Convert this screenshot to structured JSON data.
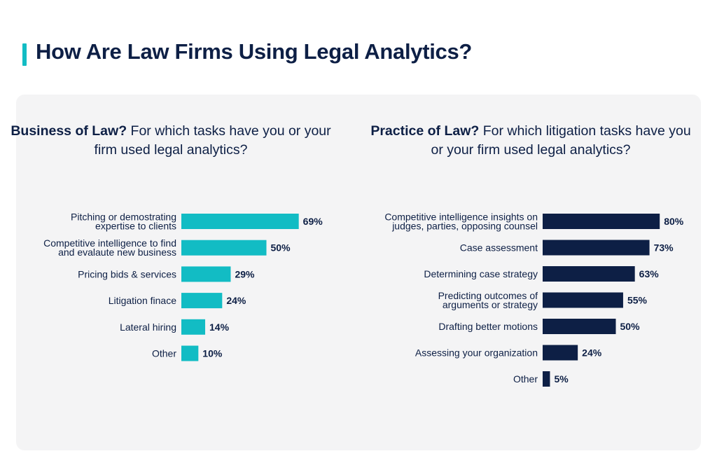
{
  "page": {
    "title": "How Are Law Firms Using Legal Analytics?"
  },
  "colors": {
    "accent": "#12bcc4",
    "left_bars": "#12bcc4",
    "right_bars": "#0d1f45",
    "panel_bg": "#f4f4f5",
    "text": "#0d1f45"
  },
  "left_heading": {
    "bold": "Business of Law?",
    "rest": " For which tasks have you or your firm used legal analytics?"
  },
  "right_heading": {
    "bold": "Practice of Law?",
    "rest": " For which litigation tasks have you or your firm used legal analytics?"
  },
  "chart_data": [
    {
      "type": "bar",
      "orientation": "horizontal",
      "title": "Business of Law? For which tasks have you or your firm used legal analytics?",
      "categories": [
        [
          "Pitching or demostrating",
          "expertise to clients"
        ],
        [
          "Competitive intelligence to find",
          "and evalaute new business"
        ],
        [
          "Pricing bids & services"
        ],
        [
          "Litigation finace"
        ],
        [
          "Lateral hiring"
        ],
        [
          "Other"
        ]
      ],
      "values": [
        69,
        50,
        29,
        24,
        14,
        10
      ],
      "value_labels": [
        "69%",
        "50%",
        "29%",
        "24%",
        "14%",
        "10%"
      ],
      "unit": "%",
      "xlim": [
        0,
        100
      ],
      "grid": false,
      "legend": "none"
    },
    {
      "type": "bar",
      "orientation": "horizontal",
      "title": "Practice of Law? For which litigation tasks have you or your firm used legal analytics?",
      "categories": [
        [
          "Competitive intelligence insights on",
          "judges, parties, opposing counsel"
        ],
        [
          "Case assessment"
        ],
        [
          "Determining case strategy"
        ],
        [
          "Predicting outcomes of",
          "arguments or strategy"
        ],
        [
          "Drafting better motions"
        ],
        [
          "Assessing your organization"
        ],
        [
          "Other"
        ]
      ],
      "values": [
        80,
        73,
        63,
        55,
        50,
        24,
        5
      ],
      "value_labels": [
        "80%",
        "73%",
        "63%",
        "55%",
        "50%",
        "24%",
        "5%"
      ],
      "unit": "%",
      "xlim": [
        0,
        100
      ],
      "grid": false,
      "legend": "none"
    }
  ]
}
